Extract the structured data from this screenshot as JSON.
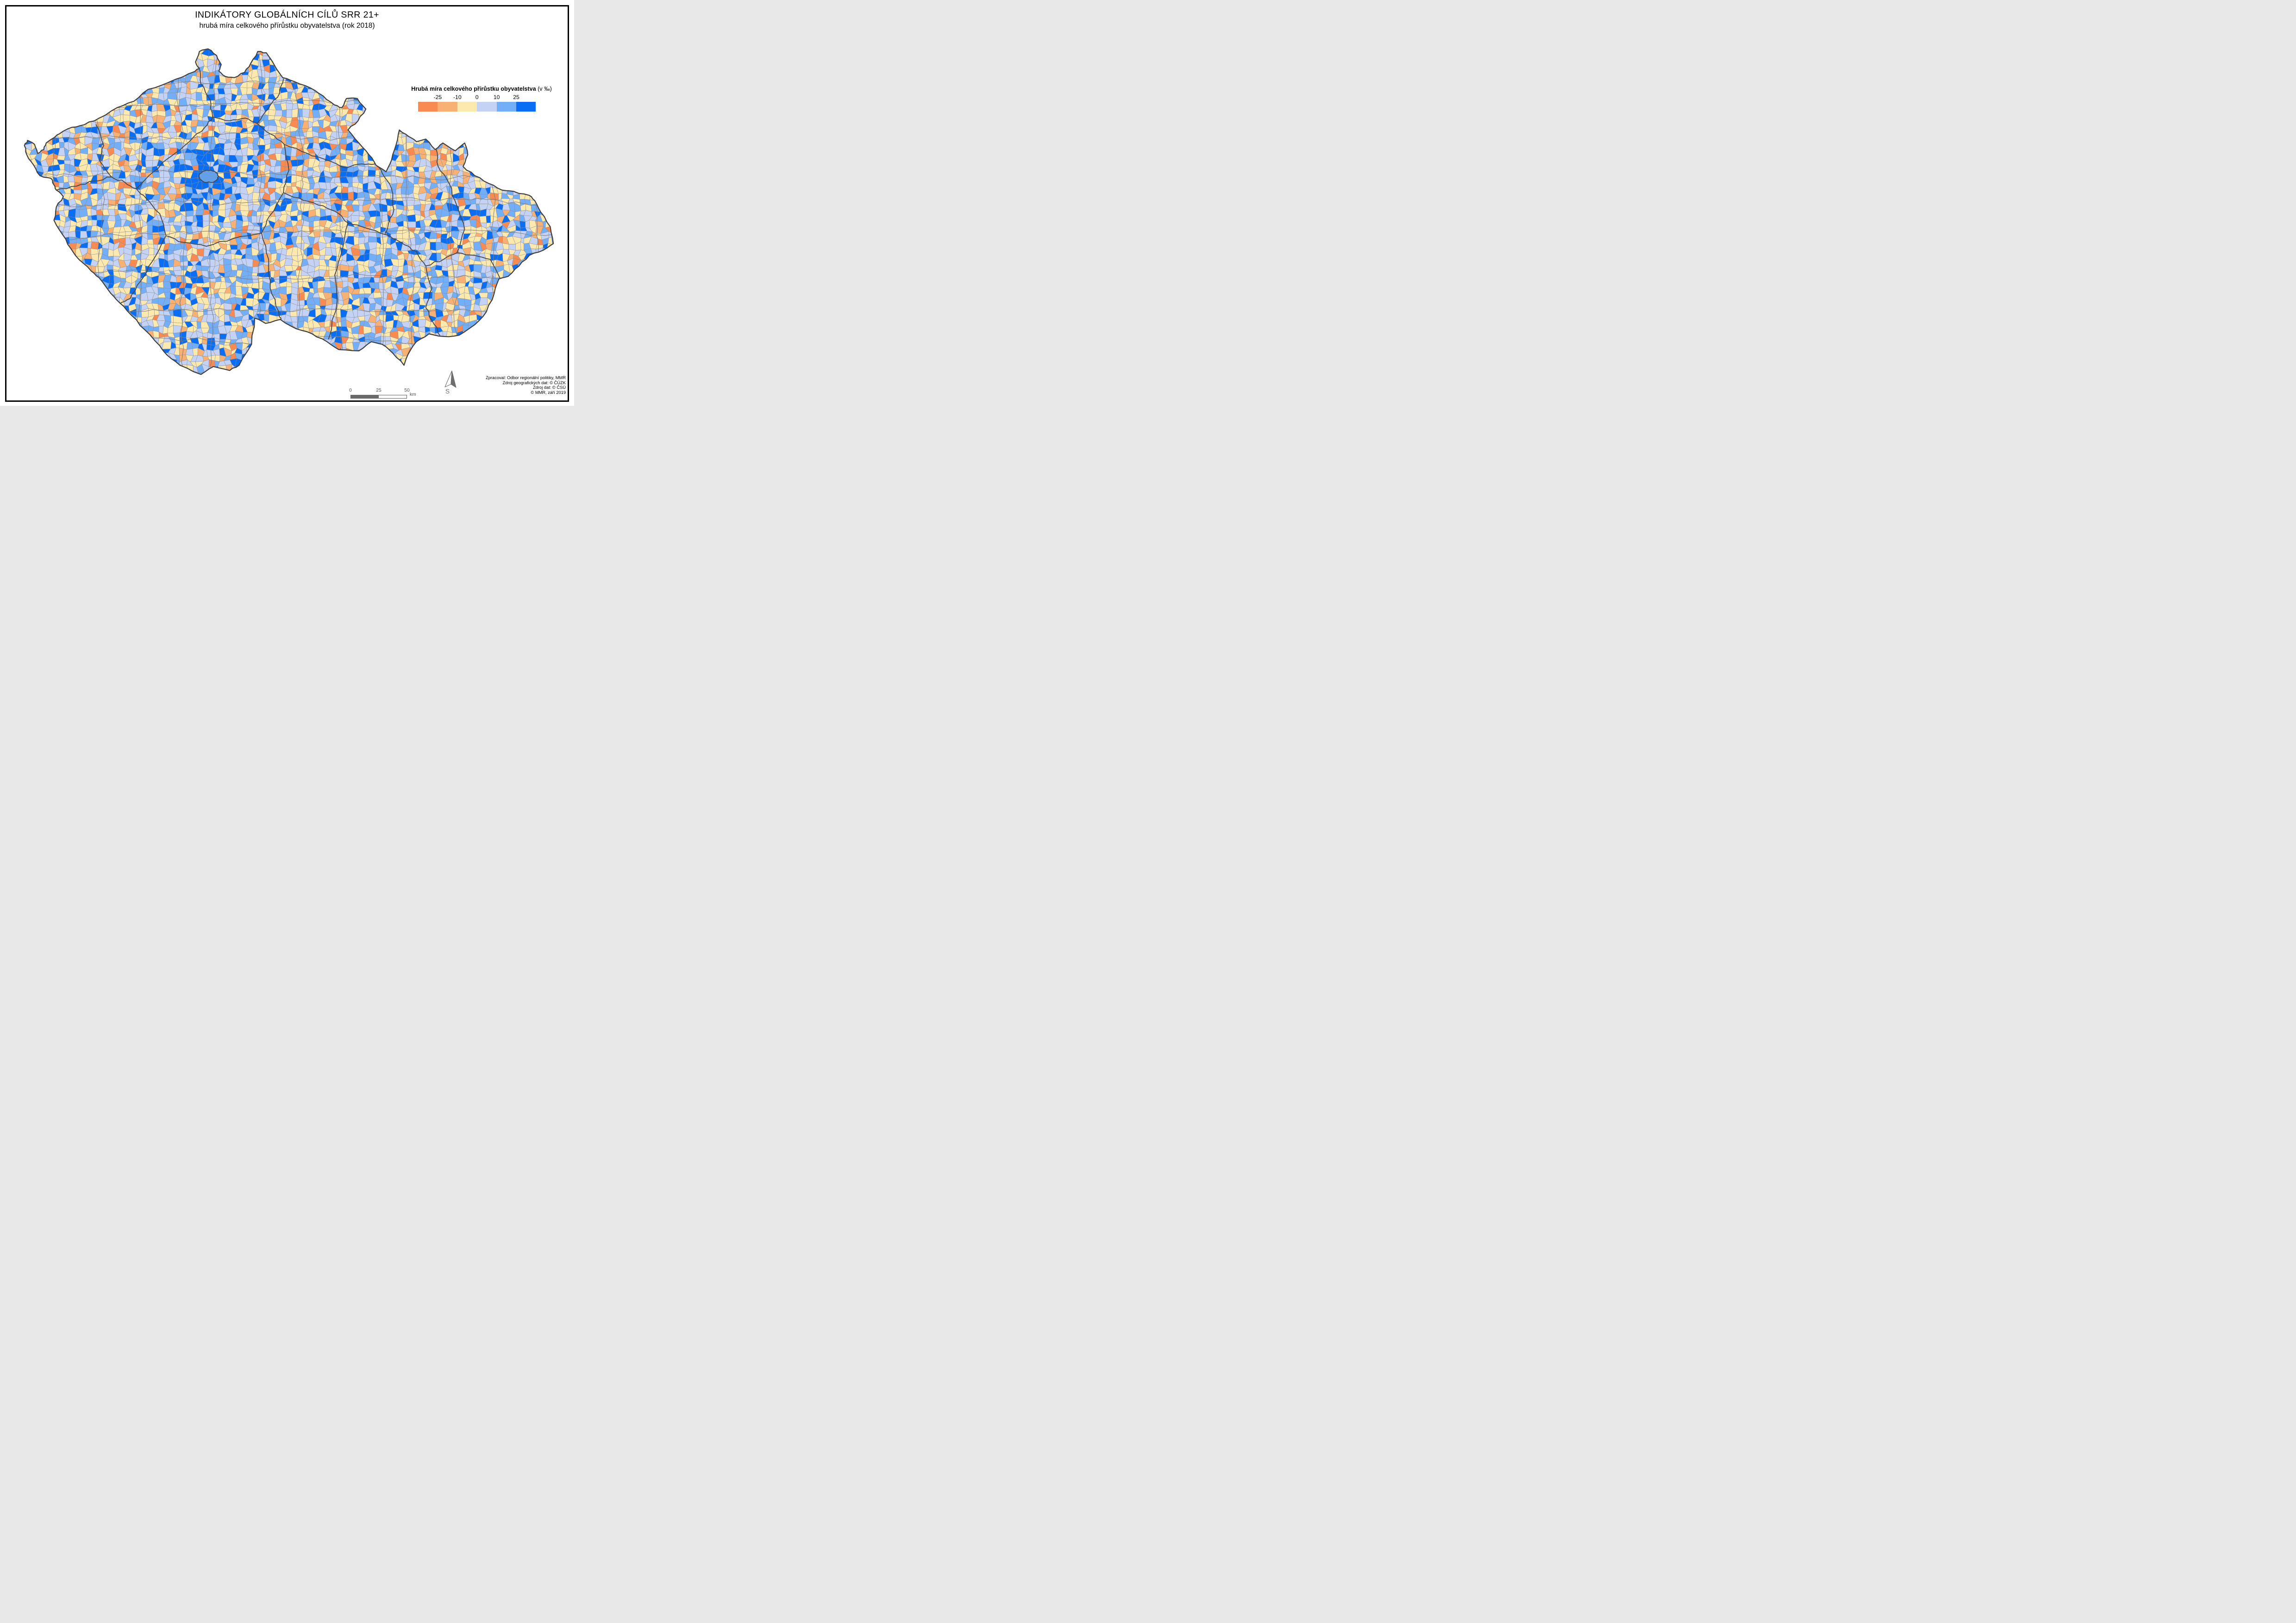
{
  "title": "INDIKÁTORY GLOBÁLNÍCH CÍLŮ SRR 21+",
  "subtitle": "hrubá míra celkového přírůstku obyvatelstva (rok 2018)",
  "legend": {
    "title": "Hrubá míra celkového přírůstku obyvatelstva",
    "unit": "(v ‰)",
    "breaks": [
      "-25",
      "-10",
      "0",
      "10",
      "25"
    ],
    "class_colors": [
      "#f98a52",
      "#f8b173",
      "#fde9ad",
      "#c4d2f6",
      "#73aef8",
      "#0a6ef5"
    ]
  },
  "map": {
    "colors": {
      "municipality_border": "#8d8d8d",
      "district_border": "#7b7b7b",
      "region_border": "#474747",
      "country_border": "#3f3f3f",
      "prague_fill": "#63a0e8"
    }
  },
  "scalebar": {
    "ticks": [
      "0",
      "25",
      "50"
    ],
    "unit": "km"
  },
  "north_arrow": {
    "label": "S"
  },
  "credits": [
    "Zpracoval: Odbor regionální politiky, MMR",
    "Zdroj geografických dat: © ČÚZK",
    "Zdroj dat: © ČSÚ",
    "© MMR, září 2019"
  ]
}
